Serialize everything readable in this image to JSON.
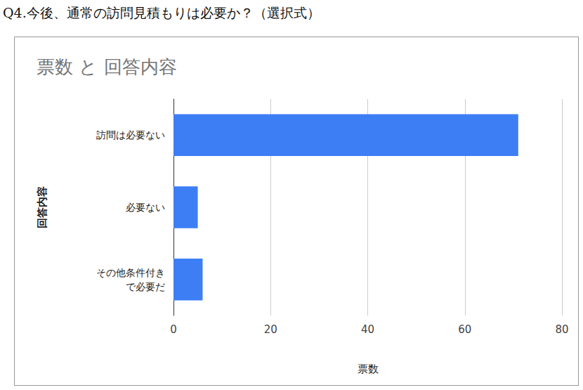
{
  "header": "Q4.今後、通常の訪問見積もりは必要か？（選択式）",
  "chart_data": {
    "type": "bar",
    "title": "票数 と 回答内容",
    "orientation": "horizontal",
    "x_label": "票数",
    "y_label": "回答内容",
    "categories": [
      "訪問は必要ない",
      "必要ない",
      "その他条件付きで必要だ"
    ],
    "values": [
      71,
      5,
      6
    ],
    "color": "#3d7ef5",
    "xlim": [
      0,
      80
    ],
    "xticks": [
      0,
      20,
      40,
      60,
      80
    ],
    "grid": true
  }
}
